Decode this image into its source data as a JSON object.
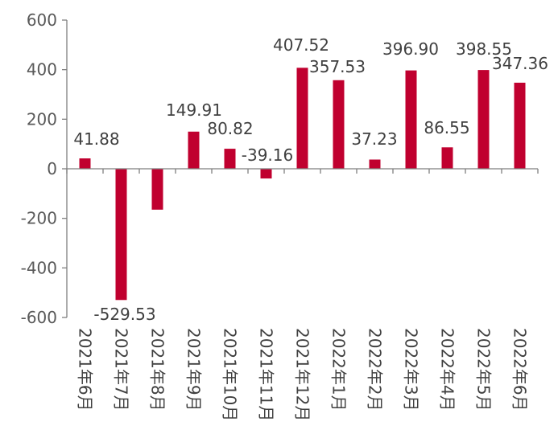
{
  "chart_data": {
    "type": "bar",
    "title": "",
    "xlabel": "",
    "ylabel": "",
    "ylim": [
      -600,
      600
    ],
    "yticks": [
      600,
      400,
      200,
      0,
      -200,
      -400,
      -600
    ],
    "grid": false,
    "legend": "none",
    "categories": [
      "2021年6月",
      "2021年7月",
      "2021年8月",
      "2021年9月",
      "2021年10月",
      "2021年11月",
      "2021年12月",
      "2022年1月",
      "2022年2月",
      "2022年3月",
      "2022年4月",
      "2022年5月",
      "2022年6月"
    ],
    "values": [
      41.88,
      -529.53,
      -165,
      149.91,
      80.82,
      -39.16,
      407.52,
      357.53,
      37.23,
      396.9,
      86.55,
      398.55,
      347.36
    ],
    "data_labels": [
      "41.88",
      "-529.53",
      "",
      "149.91",
      "80.82",
      "-39.16",
      "407.52",
      "357.53",
      "37.23",
      "396.90",
      "86.55",
      "398.55",
      "347.36"
    ],
    "bar_color": "#C0002F",
    "axis_color": "#7F7F7F"
  }
}
